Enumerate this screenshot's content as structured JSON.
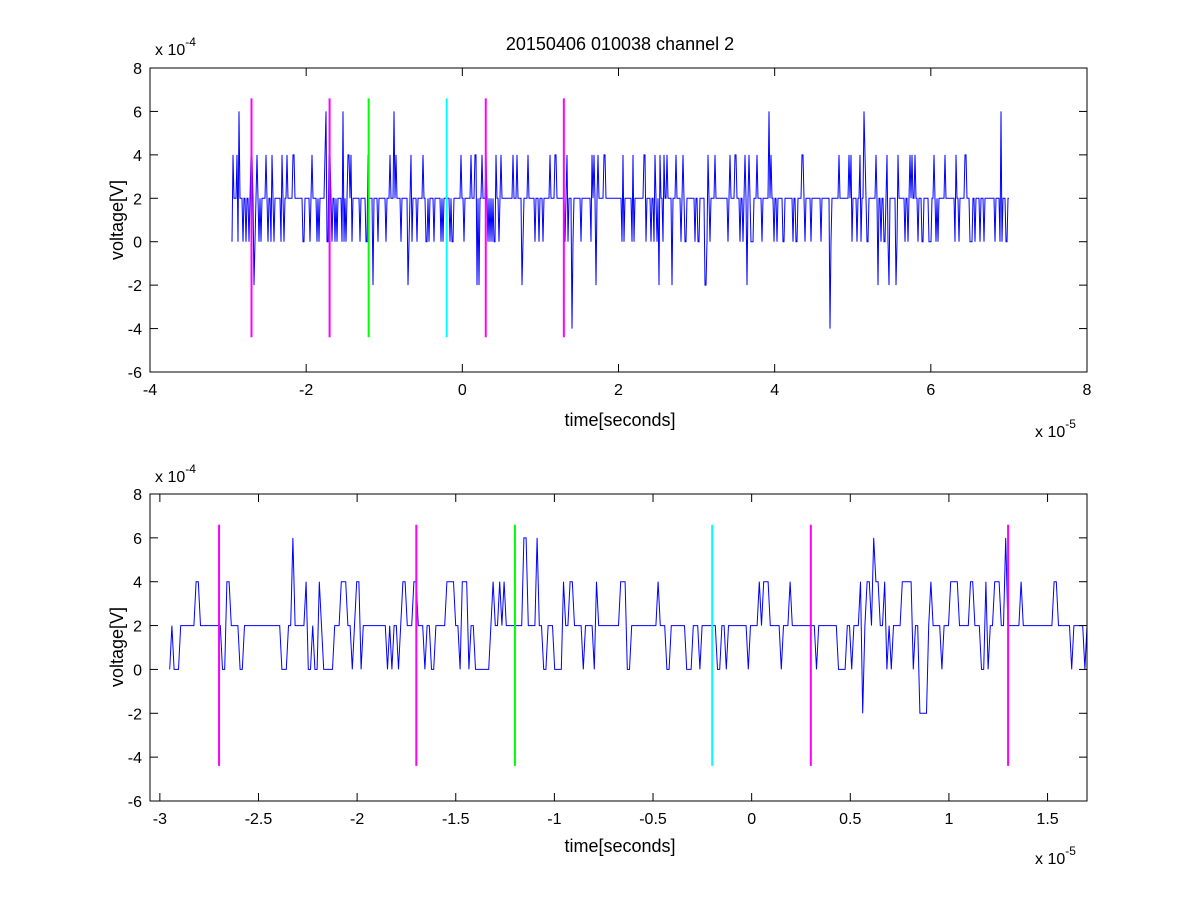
{
  "title": "20150406 010038 channel 2",
  "colors": {
    "trace": "#0000ff",
    "magenta": "#ff00ff",
    "green": "#00ff00",
    "cyan": "#00ffff"
  },
  "chart_data": [
    {
      "type": "line",
      "xlabel": "time[seconds]",
      "ylabel": "voltage[V]",
      "x_multiplier": "x 10",
      "x_exponent": "-5",
      "y_multiplier": "x 10",
      "y_exponent": "-4",
      "xlim": [
        -4,
        8
      ],
      "ylim": [
        -6,
        8
      ],
      "xticks": [
        -4,
        -2,
        0,
        2,
        4,
        6,
        8
      ],
      "xtick_labels": [
        "-4",
        "-2",
        "0",
        "2",
        "4",
        "6",
        "8"
      ],
      "yticks": [
        -6,
        -4,
        -2,
        0,
        2,
        4,
        6,
        8
      ],
      "ytick_labels": [
        "-6",
        "-4",
        "-2",
        "0",
        "2",
        "4",
        "6",
        "8"
      ],
      "trace": {
        "x_range": [
          -2.95,
          7.0
        ],
        "levels": [
          -4,
          -2,
          0,
          2,
          4,
          6
        ],
        "baseline": 2
      },
      "markers": [
        {
          "x": -2.7,
          "color": "magenta",
          "ymin": -4.4,
          "ymax": 6.6
        },
        {
          "x": -1.7,
          "color": "magenta",
          "ymin": -4.4,
          "ymax": 6.6
        },
        {
          "x": -1.2,
          "color": "green",
          "ymin": -4.4,
          "ymax": 6.6
        },
        {
          "x": -0.2,
          "color": "cyan",
          "ymin": -4.4,
          "ymax": 6.6
        },
        {
          "x": 0.3,
          "color": "magenta",
          "ymin": -4.4,
          "ymax": 6.6
        },
        {
          "x": 1.3,
          "color": "magenta",
          "ymin": -4.4,
          "ymax": 6.6
        }
      ]
    },
    {
      "type": "line",
      "xlabel": "time[seconds]",
      "ylabel": "voltage[V]",
      "x_multiplier": "x 10",
      "x_exponent": "-5",
      "y_multiplier": "x 10",
      "y_exponent": "-4",
      "xlim": [
        -3.05,
        1.7
      ],
      "ylim": [
        -6,
        8
      ],
      "xticks": [
        -3,
        -2.5,
        -2,
        -1.5,
        -1,
        -0.5,
        0,
        0.5,
        1,
        1.5
      ],
      "xtick_labels": [
        "-3",
        "-2.5",
        "-2",
        "-1.5",
        "-1",
        "-0.5",
        "0",
        "0.5",
        "1",
        "1.5"
      ],
      "yticks": [
        -6,
        -4,
        -2,
        0,
        2,
        4,
        6,
        8
      ],
      "ytick_labels": [
        "-6",
        "-4",
        "-2",
        "0",
        "2",
        "4",
        "6",
        "8"
      ],
      "trace": {
        "x_range": [
          -2.95,
          1.7
        ],
        "levels": [
          -2,
          0,
          2,
          4,
          6
        ],
        "baseline": 2
      },
      "markers": [
        {
          "x": -2.7,
          "color": "magenta",
          "ymin": -4.4,
          "ymax": 6.6
        },
        {
          "x": -1.7,
          "color": "magenta",
          "ymin": -4.4,
          "ymax": 6.6
        },
        {
          "x": -1.2,
          "color": "green",
          "ymin": -4.4,
          "ymax": 6.6
        },
        {
          "x": -0.2,
          "color": "cyan",
          "ymin": -4.4,
          "ymax": 6.6
        },
        {
          "x": 0.3,
          "color": "magenta",
          "ymin": -4.4,
          "ymax": 6.6
        },
        {
          "x": 1.3,
          "color": "magenta",
          "ymin": -4.4,
          "ymax": 6.6
        }
      ]
    }
  ]
}
